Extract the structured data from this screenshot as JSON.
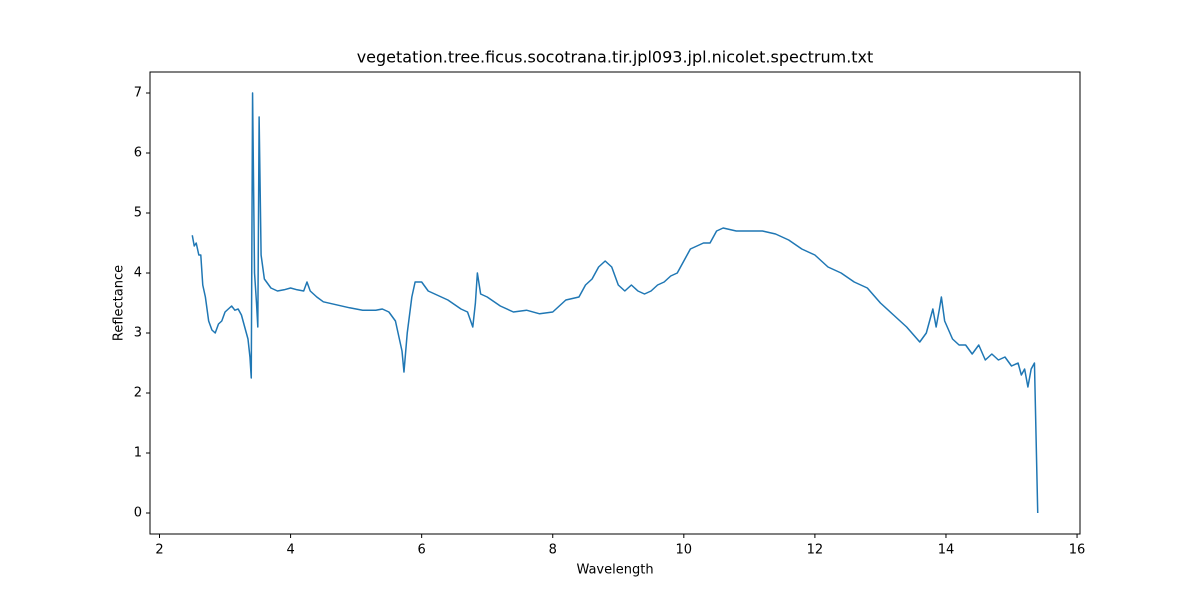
{
  "chart_data": {
    "type": "line",
    "title": "vegetation.tree.ficus.socotrana.tir.jpl093.jpl.nicolet.spectrum.txt",
    "xlabel": "Wavelength",
    "ylabel": "Reflectance",
    "color": "#1f77b4",
    "x": [
      2.5,
      2.53,
      2.56,
      2.6,
      2.63,
      2.66,
      2.7,
      2.75,
      2.8,
      2.85,
      2.9,
      2.95,
      3.0,
      3.05,
      3.1,
      3.15,
      3.2,
      3.25,
      3.3,
      3.35,
      3.38,
      3.4,
      3.42,
      3.45,
      3.48,
      3.5,
      3.52,
      3.55,
      3.6,
      3.7,
      3.8,
      3.9,
      4.0,
      4.1,
      4.2,
      4.25,
      4.3,
      4.4,
      4.5,
      4.7,
      4.9,
      5.1,
      5.3,
      5.4,
      5.5,
      5.6,
      5.7,
      5.73,
      5.78,
      5.85,
      5.9,
      6.0,
      6.1,
      6.2,
      6.4,
      6.6,
      6.7,
      6.78,
      6.82,
      6.85,
      6.9,
      7.0,
      7.2,
      7.4,
      7.6,
      7.8,
      8.0,
      8.2,
      8.4,
      8.5,
      8.6,
      8.7,
      8.8,
      8.9,
      9.0,
      9.1,
      9.2,
      9.3,
      9.4,
      9.5,
      9.6,
      9.7,
      9.8,
      9.9,
      10.0,
      10.1,
      10.2,
      10.3,
      10.4,
      10.5,
      10.6,
      10.8,
      11.0,
      11.2,
      11.4,
      11.6,
      11.8,
      12.0,
      12.2,
      12.4,
      12.6,
      12.8,
      13.0,
      13.2,
      13.4,
      13.6,
      13.7,
      13.8,
      13.85,
      13.9,
      13.93,
      13.98,
      14.1,
      14.2,
      14.3,
      14.4,
      14.5,
      14.6,
      14.7,
      14.8,
      14.9,
      15.0,
      15.1,
      15.15,
      15.2,
      15.25,
      15.3,
      15.35,
      15.4
    ],
    "values": [
      4.63,
      4.45,
      4.5,
      4.3,
      4.3,
      3.8,
      3.6,
      3.2,
      3.05,
      3.0,
      3.15,
      3.2,
      3.35,
      3.4,
      3.45,
      3.38,
      3.4,
      3.3,
      3.1,
      2.9,
      2.6,
      2.25,
      7.0,
      4.0,
      3.5,
      3.1,
      6.6,
      4.3,
      3.9,
      3.75,
      3.7,
      3.72,
      3.75,
      3.72,
      3.7,
      3.85,
      3.7,
      3.6,
      3.52,
      3.47,
      3.42,
      3.38,
      3.38,
      3.4,
      3.35,
      3.2,
      2.7,
      2.35,
      3.0,
      3.6,
      3.85,
      3.85,
      3.7,
      3.65,
      3.55,
      3.4,
      3.35,
      3.1,
      3.5,
      4.0,
      3.65,
      3.6,
      3.45,
      3.35,
      3.38,
      3.32,
      3.35,
      3.55,
      3.6,
      3.8,
      3.9,
      4.1,
      4.2,
      4.1,
      3.8,
      3.7,
      3.8,
      3.7,
      3.65,
      3.7,
      3.8,
      3.85,
      3.95,
      4.0,
      4.2,
      4.4,
      4.45,
      4.5,
      4.5,
      4.7,
      4.75,
      4.7,
      4.7,
      4.7,
      4.65,
      4.55,
      4.4,
      4.3,
      4.1,
      4.0,
      3.85,
      3.75,
      3.5,
      3.3,
      3.1,
      2.85,
      3.0,
      3.4,
      3.1,
      3.4,
      3.6,
      3.2,
      2.9,
      2.8,
      2.8,
      2.65,
      2.8,
      2.55,
      2.65,
      2.55,
      2.6,
      2.45,
      2.5,
      2.3,
      2.4,
      2.1,
      2.4,
      2.5,
      0.0
    ],
    "xlim": [
      1.855,
      16.045
    ],
    "ylim": [
      -0.35,
      7.35
    ],
    "xticks": [
      2,
      4,
      6,
      8,
      10,
      12,
      14,
      16
    ],
    "yticks": [
      0,
      1,
      2,
      3,
      4,
      5,
      6,
      7
    ]
  }
}
